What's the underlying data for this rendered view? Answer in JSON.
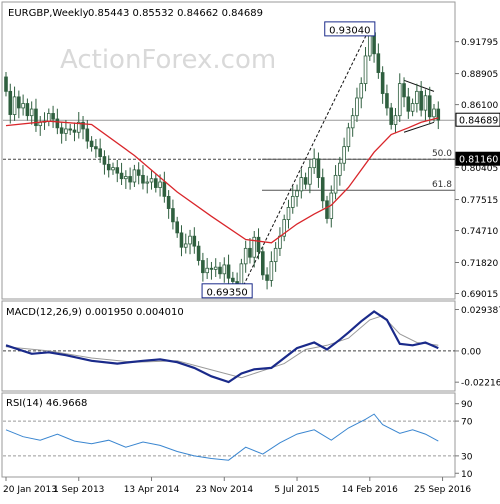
{
  "chart_data": [
    {
      "panel": "price",
      "type": "candlestick",
      "symbol": "EURGBP,Weekly",
      "ohlc_text": "0.85443 0.85532 0.84662 0.84689",
      "watermark": "ActionForex.com",
      "ylim": [
        0.687,
        0.952
      ],
      "y_ticks": [
        "0.91795",
        "0.88905",
        "0.86100",
        "0.80405",
        "0.77515",
        "0.74710",
        "0.71820",
        "0.69015"
      ],
      "y_tick_values": [
        0.91795,
        0.88905,
        0.861,
        0.80405,
        0.77515,
        0.7471,
        0.7182,
        0.69015
      ],
      "current_price": {
        "label": "0.84689",
        "value": 0.84689
      },
      "level_tag": {
        "label": "0.81160",
        "value": 0.8116
      },
      "peak_label": {
        "label": "0.93040",
        "value": 0.9304,
        "index": 85
      },
      "trough_label": {
        "label": "0.69350",
        "value": 0.6935,
        "index": 54
      },
      "fib_levels": [
        {
          "label": "50.0",
          "value": 0.8116
        },
        {
          "label": "61.8",
          "value": 0.7836
        }
      ],
      "candles": [
        [
          0.886,
          0.873
        ],
        [
          0.873,
          0.852
        ],
        [
          0.852,
          0.868
        ],
        [
          0.868,
          0.858
        ],
        [
          0.858,
          0.862
        ],
        [
          0.862,
          0.851
        ],
        [
          0.851,
          0.857
        ],
        [
          0.857,
          0.842
        ],
        [
          0.842,
          0.845
        ],
        [
          0.845,
          0.846
        ],
        [
          0.846,
          0.853
        ],
        [
          0.853,
          0.848
        ],
        [
          0.848,
          0.84
        ],
        [
          0.84,
          0.835
        ],
        [
          0.835,
          0.839
        ],
        [
          0.839,
          0.838
        ],
        [
          0.838,
          0.836
        ],
        [
          0.836,
          0.845
        ],
        [
          0.845,
          0.839
        ],
        [
          0.839,
          0.828
        ],
        [
          0.828,
          0.823
        ],
        [
          0.823,
          0.821
        ],
        [
          0.821,
          0.814
        ],
        [
          0.814,
          0.807
        ],
        [
          0.807,
          0.802
        ],
        [
          0.802,
          0.804
        ],
        [
          0.804,
          0.799
        ],
        [
          0.799,
          0.794
        ],
        [
          0.794,
          0.796
        ],
        [
          0.796,
          0.791
        ],
        [
          0.791,
          0.802
        ],
        [
          0.802,
          0.797
        ],
        [
          0.797,
          0.79
        ],
        [
          0.79,
          0.791
        ],
        [
          0.791,
          0.794
        ],
        [
          0.794,
          0.786
        ],
        [
          0.786,
          0.791
        ],
        [
          0.791,
          0.778
        ],
        [
          0.778,
          0.767
        ],
        [
          0.767,
          0.755
        ],
        [
          0.755,
          0.745
        ],
        [
          0.745,
          0.732
        ],
        [
          0.732,
          0.735
        ],
        [
          0.735,
          0.742
        ],
        [
          0.742,
          0.733
        ],
        [
          0.733,
          0.72
        ],
        [
          0.72,
          0.709
        ],
        [
          0.709,
          0.713
        ],
        [
          0.713,
          0.712
        ],
        [
          0.712,
          0.714
        ],
        [
          0.714,
          0.708
        ],
        [
          0.708,
          0.716
        ],
        [
          0.716,
          0.704
        ],
        [
          0.704,
          0.701
        ],
        [
          0.701,
          0.697
        ],
        [
          0.697,
          0.717
        ],
        [
          0.717,
          0.731
        ],
        [
          0.731,
          0.723
        ],
        [
          0.723,
          0.741
        ],
        [
          0.741,
          0.728
        ],
        [
          0.728,
          0.707
        ],
        [
          0.707,
          0.702
        ],
        [
          0.702,
          0.719
        ],
        [
          0.719,
          0.731
        ],
        [
          0.731,
          0.742
        ],
        [
          0.742,
          0.757
        ],
        [
          0.757,
          0.768
        ],
        [
          0.768,
          0.778
        ],
        [
          0.778,
          0.783
        ],
        [
          0.783,
          0.795
        ],
        [
          0.795,
          0.789
        ],
        [
          0.789,
          0.804
        ],
        [
          0.804,
          0.812
        ],
        [
          0.812,
          0.795
        ],
        [
          0.795,
          0.774
        ],
        [
          0.774,
          0.758
        ],
        [
          0.758,
          0.781
        ],
        [
          0.781,
          0.797
        ],
        [
          0.797,
          0.808
        ],
        [
          0.808,
          0.823
        ],
        [
          0.823,
          0.84
        ],
        [
          0.84,
          0.851
        ],
        [
          0.851,
          0.867
        ],
        [
          0.867,
          0.88
        ],
        [
          0.88,
          0.905
        ],
        [
          0.905,
          0.926
        ],
        [
          0.926,
          0.907
        ],
        [
          0.907,
          0.89
        ],
        [
          0.89,
          0.871
        ],
        [
          0.871,
          0.858
        ],
        [
          0.858,
          0.843
        ],
        [
          0.843,
          0.851
        ],
        [
          0.851,
          0.88
        ],
        [
          0.88,
          0.868
        ],
        [
          0.868,
          0.855
        ],
        [
          0.855,
          0.862
        ],
        [
          0.862,
          0.873
        ],
        [
          0.873,
          0.856
        ],
        [
          0.856,
          0.869
        ],
        [
          0.869,
          0.85
        ],
        [
          0.85,
          0.857
        ],
        [
          0.857,
          0.847
        ]
      ],
      "ma_series": [
        {
          "points": [
            [
              0,
              0.842
            ],
            [
              10,
              0.846
            ],
            [
              20,
              0.843
            ],
            [
              30,
              0.815
            ],
            [
              40,
              0.782
            ],
            [
              48,
              0.76
            ],
            [
              56,
              0.739
            ],
            [
              62,
              0.736
            ],
            [
              68,
              0.753
            ],
            [
              72,
              0.762
            ],
            [
              76,
              0.77
            ],
            [
              80,
              0.786
            ],
            [
              86,
              0.818
            ],
            [
              90,
              0.834
            ],
            [
              94,
              0.84
            ],
            [
              97,
              0.845
            ],
            [
              101,
              0.849
            ]
          ]
        }
      ],
      "trendlines": [
        {
          "style": "dashed",
          "from": [
            55,
            0.6935
          ],
          "to": [
            85,
            0.9304
          ]
        },
        {
          "style": "solid",
          "from": [
            93,
            0.883
          ],
          "to": [
            100,
            0.873
          ]
        },
        {
          "style": "solid",
          "from": [
            93,
            0.836
          ],
          "to": [
            100,
            0.845
          ]
        }
      ],
      "x_labels": [
        "20 Jan 2013",
        "1 Sep 2013",
        "13 Apr 2014",
        "23 Nov 2014",
        "5 Jul 2015",
        "14 Feb 2016",
        "25 Sep 2016"
      ],
      "x_label_positions": [
        0,
        17,
        34,
        51,
        68,
        85,
        102
      ],
      "colors": {
        "candle": "#2f5f3f",
        "ma": "#d9262b",
        "grid": "#9a9a9a"
      }
    },
    {
      "panel": "macd",
      "type": "line",
      "title": "MACD(12,26,9) 0.001950 0.004010",
      "ylim": [
        -0.027,
        0.034
      ],
      "y_ticks": [
        "0.029387",
        "0.00",
        "-0.022161"
      ],
      "y_tick_values": [
        0.029387,
        0.0,
        -0.022161
      ],
      "series": [
        {
          "points": [
            [
              0,
              0.004
            ],
            [
              6,
              -0.002
            ],
            [
              10,
              -0.001
            ],
            [
              14,
              -0.003
            ],
            [
              20,
              -0.007
            ],
            [
              26,
              -0.009
            ],
            [
              32,
              -0.007
            ],
            [
              36,
              -0.006
            ],
            [
              40,
              -0.008
            ],
            [
              44,
              -0.012
            ],
            [
              48,
              -0.018
            ],
            [
              52,
              -0.022
            ],
            [
              55,
              -0.016
            ],
            [
              58,
              -0.013
            ],
            [
              62,
              -0.012
            ],
            [
              65,
              -0.005
            ],
            [
              68,
              0.002
            ],
            [
              72,
              0.006
            ],
            [
              75,
              0.001
            ],
            [
              78,
              0.008
            ],
            [
              80,
              0.013
            ],
            [
              83,
              0.021
            ],
            [
              86,
              0.028
            ],
            [
              89,
              0.022
            ],
            [
              92,
              0.005
            ],
            [
              95,
              0.004
            ],
            [
              98,
              0.006
            ],
            [
              101,
              0.002
            ]
          ]
        },
        {
          "points": [
            [
              0,
              0.003
            ],
            [
              10,
              0.0
            ],
            [
              20,
              -0.005
            ],
            [
              30,
              -0.008
            ],
            [
              40,
              -0.007
            ],
            [
              50,
              -0.015
            ],
            [
              55,
              -0.019
            ],
            [
              60,
              -0.014
            ],
            [
              65,
              -0.009
            ],
            [
              70,
              0.001
            ],
            [
              75,
              0.004
            ],
            [
              80,
              0.009
            ],
            [
              85,
              0.022
            ],
            [
              88,
              0.025
            ],
            [
              92,
              0.012
            ],
            [
              96,
              0.006
            ],
            [
              101,
              0.004
            ]
          ]
        }
      ],
      "colors": {
        "macd": "#1a2a8a",
        "signal": "#9a9a9a"
      }
    },
    {
      "panel": "rsi",
      "type": "line",
      "title": "RSI(14) 46.9668",
      "ylim": [
        8,
        100
      ],
      "y_ticks": [
        "90",
        "70",
        "30",
        "10"
      ],
      "y_tick_values": [
        90,
        70,
        30,
        10
      ],
      "series": [
        {
          "points": [
            [
              0,
              60
            ],
            [
              4,
              52
            ],
            [
              8,
              48
            ],
            [
              12,
              55
            ],
            [
              16,
              47
            ],
            [
              20,
              44
            ],
            [
              24,
              48
            ],
            [
              28,
              40
            ],
            [
              32,
              46
            ],
            [
              36,
              42
            ],
            [
              40,
              35
            ],
            [
              44,
              30
            ],
            [
              48,
              27
            ],
            [
              52,
              25
            ],
            [
              56,
              40
            ],
            [
              60,
              32
            ],
            [
              64,
              45
            ],
            [
              68,
              55
            ],
            [
              72,
              60
            ],
            [
              76,
              48
            ],
            [
              80,
              62
            ],
            [
              84,
              72
            ],
            [
              86,
              78
            ],
            [
              88,
              66
            ],
            [
              92,
              56
            ],
            [
              95,
              60
            ],
            [
              98,
              55
            ],
            [
              101,
              47
            ]
          ]
        }
      ],
      "colors": {
        "rsi": "#3a86d0",
        "level": "#9a9a9a"
      }
    }
  ]
}
